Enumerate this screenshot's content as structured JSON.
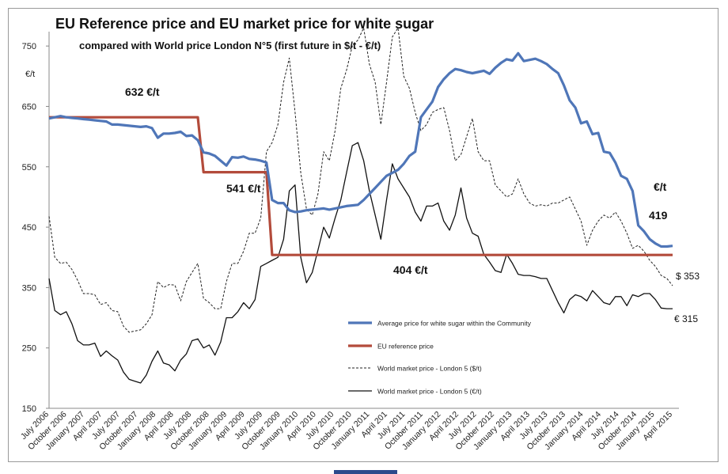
{
  "chart_data": {
    "type": "line",
    "title": "EU Reference price and EU market price for white sugar",
    "subtitle": "compared with World price London N°5 (first future in $/t - €/t)",
    "ylabel": "€/t",
    "ylim": [
      150,
      800
    ],
    "yticks": [
      150,
      250,
      350,
      450,
      550,
      650,
      750
    ],
    "xlabels": [
      "July 2006",
      "October 2006",
      "January 2007",
      "April 2007",
      "July 2007",
      "October 2007",
      "January 2008",
      "April 2008",
      "July 2008",
      "October 2008",
      "January 2009",
      "April 2009",
      "July 2009",
      "October 2009",
      "January 2010",
      "April 2010",
      "July 2010",
      "October 2010",
      "January 2011",
      "April 201",
      "July 2011",
      "October 2011",
      "January 2012",
      "April 2012",
      "July 2012",
      "October 2012",
      "January 2013",
      "April 2013",
      "July 2013",
      "October 2013",
      "January 2014",
      "April 2014",
      "July 2014",
      "October 2014",
      "January 2015",
      "April 2015"
    ],
    "annotations": {
      "ref_632": "632 €/t",
      "ref_541": "541 €/t",
      "ref_404": "404 €/t",
      "unit_right": "€/t",
      "eu_end": "419",
      "usd_end": "$ 353",
      "eur_end": "€ 315"
    },
    "series": [
      {
        "name": "Average price for white sugar within the Community",
        "color": "#4f76b8",
        "values": [
          630,
          632,
          634,
          632,
          631,
          630,
          629,
          628,
          627,
          626,
          625,
          620,
          620,
          619,
          618,
          617,
          616,
          617,
          614,
          598,
          605,
          605,
          606,
          608,
          601,
          602,
          594,
          574,
          572,
          568,
          560,
          552,
          566,
          565,
          567,
          563,
          562,
          560,
          557,
          495,
          490,
          490,
          478,
          475,
          476,
          478,
          479,
          480,
          481,
          479,
          481,
          483,
          485,
          486,
          487,
          495,
          505,
          515,
          525,
          535,
          540,
          545,
          555,
          568,
          575,
          632,
          645,
          658,
          682,
          695,
          705,
          712,
          710,
          707,
          705,
          707,
          709,
          704,
          714,
          722,
          728,
          726,
          738,
          725,
          727,
          729,
          725,
          720,
          712,
          705,
          685,
          660,
          648,
          622,
          625,
          604,
          606,
          575,
          573,
          557,
          535,
          530,
          510,
          453,
          443,
          430,
          423,
          418,
          418,
          419
        ]
      },
      {
        "name": "EU reference price",
        "color": "#b34b3b",
        "values": [
          632,
          632,
          632,
          632,
          632,
          632,
          632,
          632,
          632,
          632,
          632,
          632,
          632,
          632,
          632,
          632,
          632,
          632,
          632,
          632,
          632,
          632,
          632,
          632,
          632,
          632,
          632,
          541,
          541,
          541,
          541,
          541,
          541,
          541,
          541,
          541,
          541,
          541,
          541,
          404,
          404,
          404,
          404,
          404,
          404,
          404,
          404,
          404,
          404,
          404,
          404,
          404,
          404,
          404,
          404,
          404,
          404,
          404,
          404,
          404,
          404,
          404,
          404,
          404,
          404,
          404,
          404,
          404,
          404,
          404,
          404,
          404,
          404,
          404,
          404,
          404,
          404,
          404,
          404,
          404,
          404,
          404,
          404,
          404,
          404,
          404,
          404,
          404,
          404,
          404,
          404,
          404,
          404,
          404,
          404,
          404,
          404,
          404,
          404,
          404,
          404,
          404,
          404,
          404,
          404,
          404,
          404,
          404,
          404,
          404
        ]
      },
      {
        "name": "World market price - London 5 ($/t)",
        "color": "#222222",
        "values": [
          468,
          400,
          390,
          392,
          380,
          362,
          340,
          340,
          338,
          322,
          325,
          312,
          310,
          286,
          276,
          278,
          280,
          290,
          305,
          360,
          350,
          355,
          354,
          328,
          360,
          375,
          390,
          332,
          325,
          315,
          315,
          360,
          390,
          390,
          410,
          440,
          440,
          465,
          575,
          590,
          620,
          690,
          730,
          640,
          540,
          480,
          470,
          505,
          575,
          560,
          610,
          680,
          710,
          750,
          760,
          780,
          720,
          690,
          620,
          690,
          765,
          780,
          700,
          680,
          640,
          610,
          620,
          640,
          645,
          648,
          610,
          560,
          570,
          600,
          630,
          575,
          560,
          560,
          520,
          510,
          500,
          505,
          530,
          505,
          490,
          485,
          487,
          485,
          490,
          490,
          495,
          500,
          480,
          460,
          420,
          445,
          460,
          470,
          465,
          475,
          460,
          440,
          415,
          420,
          410,
          395,
          385,
          370,
          365,
          353
        ]
      },
      {
        "name": "World market price - London 5 (€/t)",
        "color": "#111111",
        "values": [
          365,
          312,
          305,
          310,
          290,
          262,
          255,
          255,
          258,
          236,
          245,
          237,
          230,
          210,
          198,
          195,
          192,
          205,
          228,
          245,
          225,
          222,
          212,
          230,
          240,
          262,
          265,
          250,
          255,
          238,
          260,
          300,
          300,
          310,
          325,
          315,
          330,
          385,
          390,
          395,
          400,
          430,
          510,
          520,
          400,
          358,
          375,
          412,
          450,
          432,
          465,
          495,
          540,
          585,
          590,
          560,
          510,
          470,
          430,
          495,
          555,
          530,
          515,
          500,
          475,
          460,
          485,
          485,
          490,
          460,
          445,
          470,
          515,
          465,
          440,
          435,
          405,
          392,
          378,
          375,
          405,
          390,
          372,
          370,
          370,
          368,
          365,
          365,
          345,
          325,
          308,
          330,
          338,
          335,
          328,
          345,
          335,
          325,
          322,
          335,
          335,
          320,
          338,
          335,
          340,
          340,
          330,
          316,
          315,
          315
        ]
      }
    ]
  }
}
